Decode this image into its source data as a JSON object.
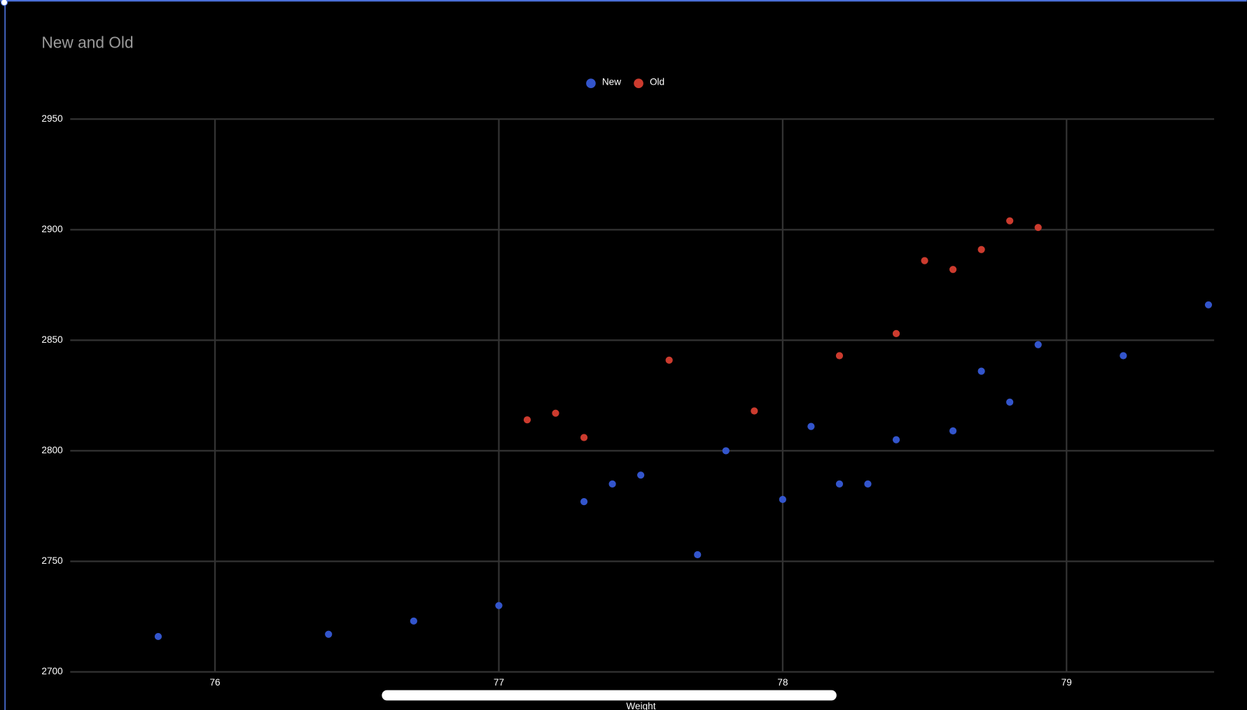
{
  "chart_data": {
    "type": "scatter",
    "title": "New and Old",
    "x_label": "Weight",
    "xlim": [
      75.49,
      79.52
    ],
    "xticks": [
      76,
      77,
      78,
      79
    ],
    "ylim": [
      2700,
      2950
    ],
    "yticks": [
      2700,
      2750,
      2800,
      2850,
      2900,
      2950
    ],
    "grid": true,
    "legend": "top",
    "series": [
      {
        "name": "New",
        "color": "#3355cc",
        "x": [
          75.8,
          76.4,
          76.7,
          77.0,
          77.3,
          77.4,
          77.5,
          77.7,
          77.8,
          78.0,
          78.1,
          78.2,
          78.3,
          78.4,
          78.6,
          78.7,
          78.8,
          78.9,
          79.2,
          79.5
        ],
        "values": [
          2716,
          2717,
          2723,
          2730,
          2777,
          2785,
          2789,
          2753,
          2800,
          2778,
          2811,
          2785,
          2785,
          2805,
          2809,
          2836,
          2822,
          2848,
          2843,
          2866
        ]
      },
      {
        "name": "Old",
        "color": "#cc3b2e",
        "x": [
          77.1,
          77.2,
          77.3,
          77.6,
          77.9,
          78.2,
          78.4,
          78.5,
          78.6,
          78.7,
          78.8,
          78.9
        ],
        "values": [
          2814,
          2817,
          2806,
          2841,
          2818,
          2843,
          2853,
          2886,
          2882,
          2891,
          2904,
          2901
        ]
      }
    ]
  }
}
